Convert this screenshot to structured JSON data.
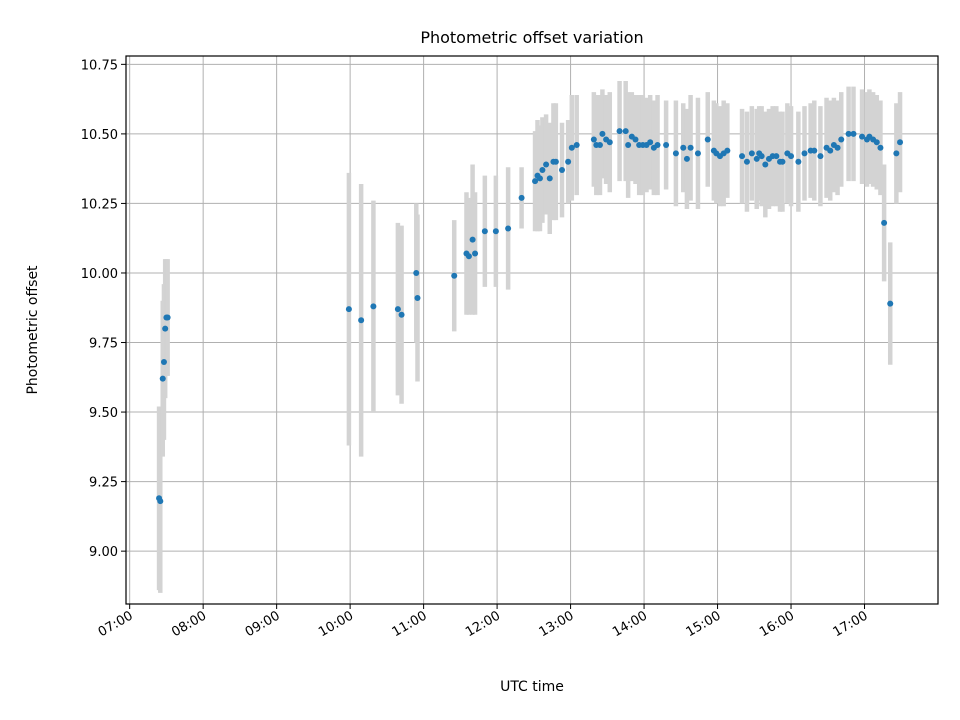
{
  "chart_data": {
    "type": "scatter",
    "title": "Photometric offset variation",
    "xlabel": "UTC time",
    "ylabel": "Photometric offset",
    "x_ticks": [
      "07:00",
      "08:00",
      "09:00",
      "10:00",
      "11:00",
      "12:00",
      "13:00",
      "14:00",
      "15:00",
      "16:00",
      "17:00"
    ],
    "y_ticks": [
      "9.00",
      "9.25",
      "9.50",
      "9.75",
      "10.00",
      "10.25",
      "10.50",
      "10.75"
    ],
    "xlim": [
      "06:57",
      "18:00"
    ],
    "ylim": [
      8.81,
      10.78
    ],
    "grid": true,
    "colors": {
      "points": "#1f77b4",
      "error_bars": "#d3d3d3"
    },
    "series": [
      {
        "x": [
          "07:24",
          "07:25",
          "07:27",
          "07:28",
          "07:29",
          "07:30",
          "07:31",
          "09:59",
          "10:09",
          "10:19",
          "10:39",
          "10:42",
          "10:54",
          "10:55",
          "11:25",
          "11:35",
          "11:37",
          "11:40",
          "11:42",
          "11:50",
          "11:59",
          "12:09",
          "12:20",
          "12:31",
          "12:33",
          "12:35",
          "12:37",
          "12:40",
          "12:43",
          "12:46",
          "12:48",
          "12:53",
          "12:58",
          "13:01",
          "13:05",
          "13:19",
          "13:21",
          "13:24",
          "13:26",
          "13:29",
          "13:32",
          "13:40",
          "13:45",
          "13:47",
          "13:50",
          "13:53",
          "13:56",
          "13:59",
          "14:02",
          "14:05",
          "14:08",
          "14:11",
          "14:18",
          "14:26",
          "14:32",
          "14:35",
          "14:38",
          "14:44",
          "14:52",
          "14:57",
          "14:59",
          "15:02",
          "15:05",
          "15:08",
          "15:20",
          "15:24",
          "15:28",
          "15:32",
          "15:34",
          "15:36",
          "15:39",
          "15:42",
          "15:45",
          "15:48",
          "15:51",
          "15:53",
          "15:57",
          "16:00",
          "16:06",
          "16:11",
          "16:16",
          "16:19",
          "16:24",
          "16:29",
          "16:32",
          "16:35",
          "16:38",
          "16:41",
          "16:47",
          "16:51",
          "16:58",
          "17:02",
          "17:04",
          "17:07",
          "17:10",
          "17:13",
          "17:16",
          "17:21",
          "17:26",
          "17:29"
        ],
        "y": [
          9.19,
          9.18,
          9.62,
          9.68,
          9.8,
          9.84,
          9.84,
          9.87,
          9.83,
          9.88,
          9.87,
          9.85,
          10.0,
          9.91,
          9.99,
          10.07,
          10.06,
          10.12,
          10.07,
          10.15,
          10.15,
          10.16,
          10.27,
          10.33,
          10.35,
          10.34,
          10.37,
          10.39,
          10.34,
          10.4,
          10.4,
          10.37,
          10.4,
          10.45,
          10.46,
          10.48,
          10.46,
          10.46,
          10.5,
          10.48,
          10.47,
          10.51,
          10.51,
          10.46,
          10.49,
          10.48,
          10.46,
          10.46,
          10.46,
          10.47,
          10.45,
          10.46,
          10.46,
          10.43,
          10.45,
          10.41,
          10.45,
          10.43,
          10.48,
          10.44,
          10.43,
          10.42,
          10.43,
          10.44,
          10.42,
          10.4,
          10.43,
          10.41,
          10.43,
          10.42,
          10.39,
          10.41,
          10.42,
          10.42,
          10.4,
          10.4,
          10.43,
          10.42,
          10.4,
          10.43,
          10.44,
          10.44,
          10.42,
          10.45,
          10.44,
          10.46,
          10.45,
          10.48,
          10.5,
          10.5,
          10.49,
          10.48,
          10.49,
          10.48,
          10.47,
          10.45,
          10.18,
          9.89,
          10.43,
          10.47
        ],
        "y_err": [
          0.33,
          0.33,
          0.28,
          0.28,
          0.25,
          0.21,
          0.21,
          0.49,
          0.49,
          0.38,
          0.31,
          0.32,
          0.25,
          0.3,
          0.2,
          0.22,
          0.21,
          0.27,
          0.22,
          0.2,
          0.2,
          0.22,
          0.11,
          0.18,
          0.2,
          0.19,
          0.19,
          0.18,
          0.2,
          0.21,
          0.21,
          0.17,
          0.15,
          0.19,
          0.18,
          0.17,
          0.18,
          0.18,
          0.16,
          0.16,
          0.18,
          0.18,
          0.18,
          0.19,
          0.16,
          0.16,
          0.18,
          0.18,
          0.17,
          0.17,
          0.17,
          0.18,
          0.16,
          0.19,
          0.16,
          0.18,
          0.19,
          0.2,
          0.17,
          0.18,
          0.18,
          0.18,
          0.19,
          0.17,
          0.17,
          0.18,
          0.17,
          0.18,
          0.17,
          0.18,
          0.19,
          0.18,
          0.18,
          0.18,
          0.18,
          0.18,
          0.18,
          0.18,
          0.18,
          0.17,
          0.17,
          0.18,
          0.18,
          0.18,
          0.18,
          0.17,
          0.17,
          0.17,
          0.17,
          0.17,
          0.17,
          0.17,
          0.17,
          0.17,
          0.17,
          0.17,
          0.21,
          0.22,
          0.18,
          0.18
        ]
      }
    ]
  }
}
